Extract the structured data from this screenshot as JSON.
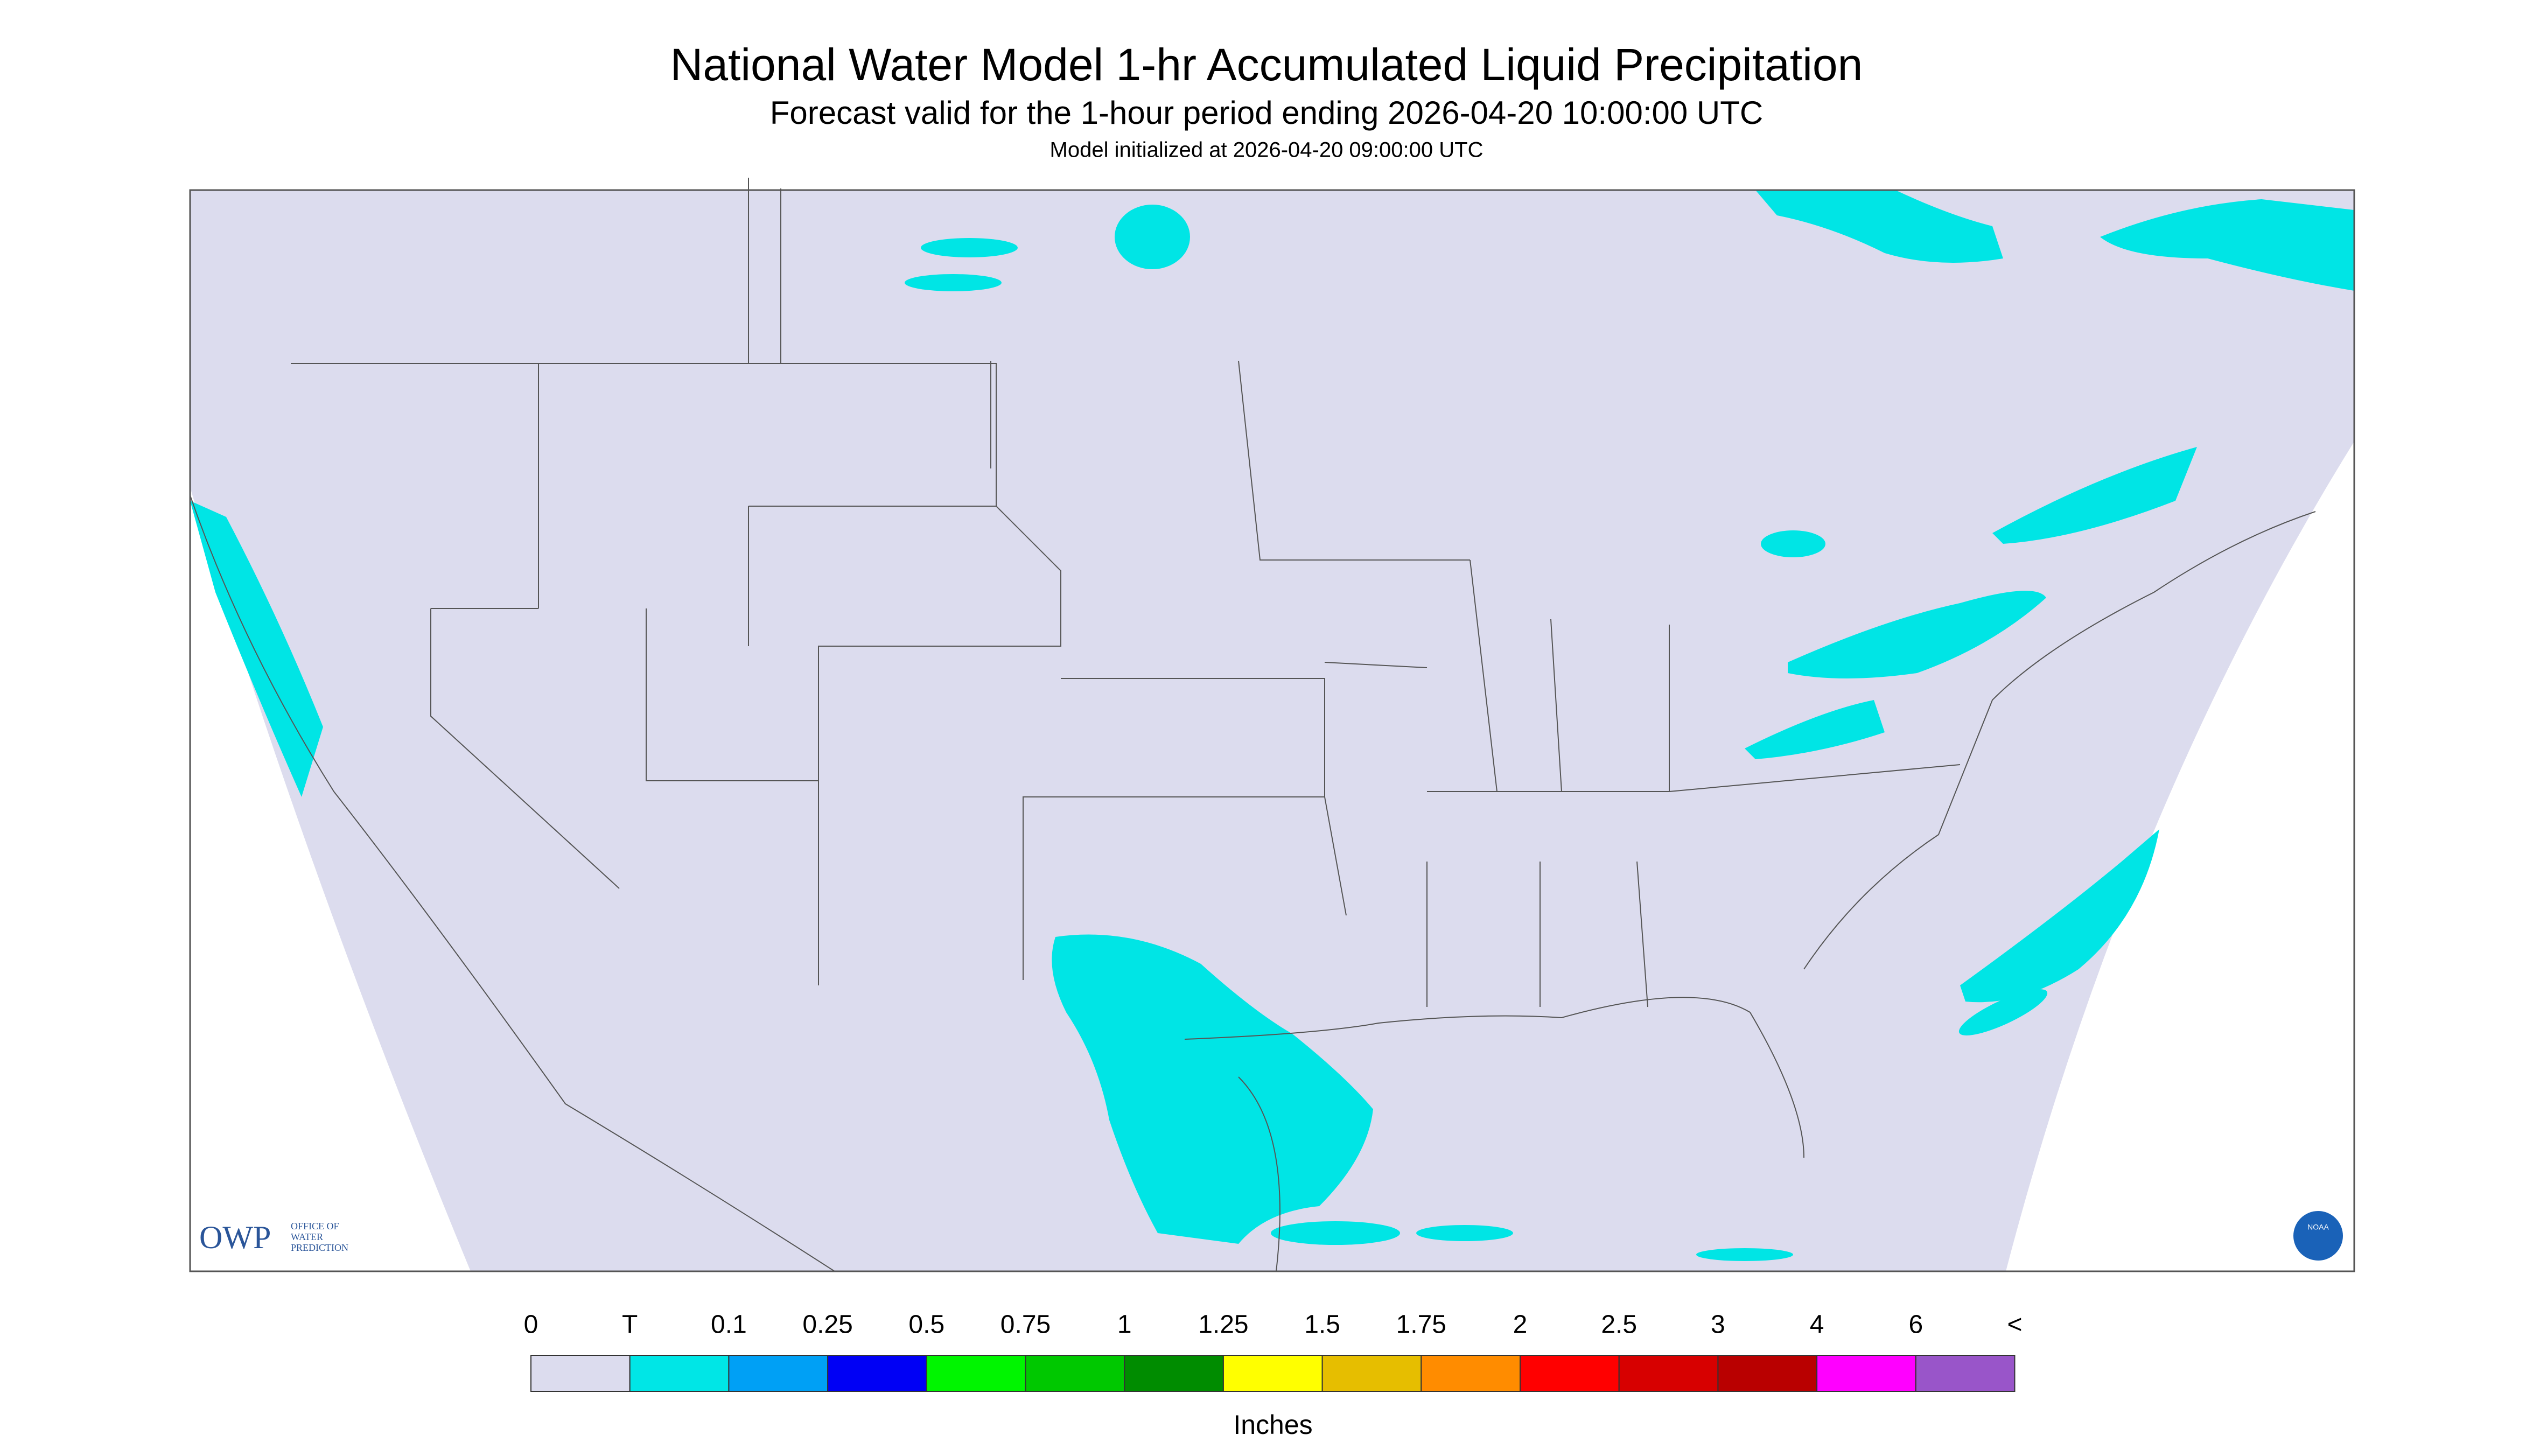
{
  "header": {
    "title": "National Water Model 1-hr Accumulated Liquid Precipitation",
    "subtitle": "Forecast valid for the 1-hour period ending 2026-04-20 10:00:00 UTC",
    "initialized": "Model initialized at 2026-04-20 09:00:00 UTC"
  },
  "logo": {
    "name": "OWP",
    "lines": [
      "OFFICE OF",
      "WATER",
      "PREDICTION"
    ],
    "agency": "NOAA"
  },
  "legend": {
    "labels": [
      "0",
      "T",
      "0.1",
      "0.25",
      "0.5",
      "0.75",
      "1",
      "1.25",
      "1.5",
      "1.75",
      "2",
      "2.5",
      "3",
      "4",
      "6",
      "<"
    ],
    "colors": [
      "#dcdcee",
      "#00e6e6",
      "#00a0f5",
      "#0000f5",
      "#00f500",
      "#00c800",
      "#008c00",
      "#ffff00",
      "#e6be00",
      "#ff8c00",
      "#ff0000",
      "#d70000",
      "#b90000",
      "#ff00ff",
      "#9955c9"
    ],
    "units": "Inches"
  }
}
